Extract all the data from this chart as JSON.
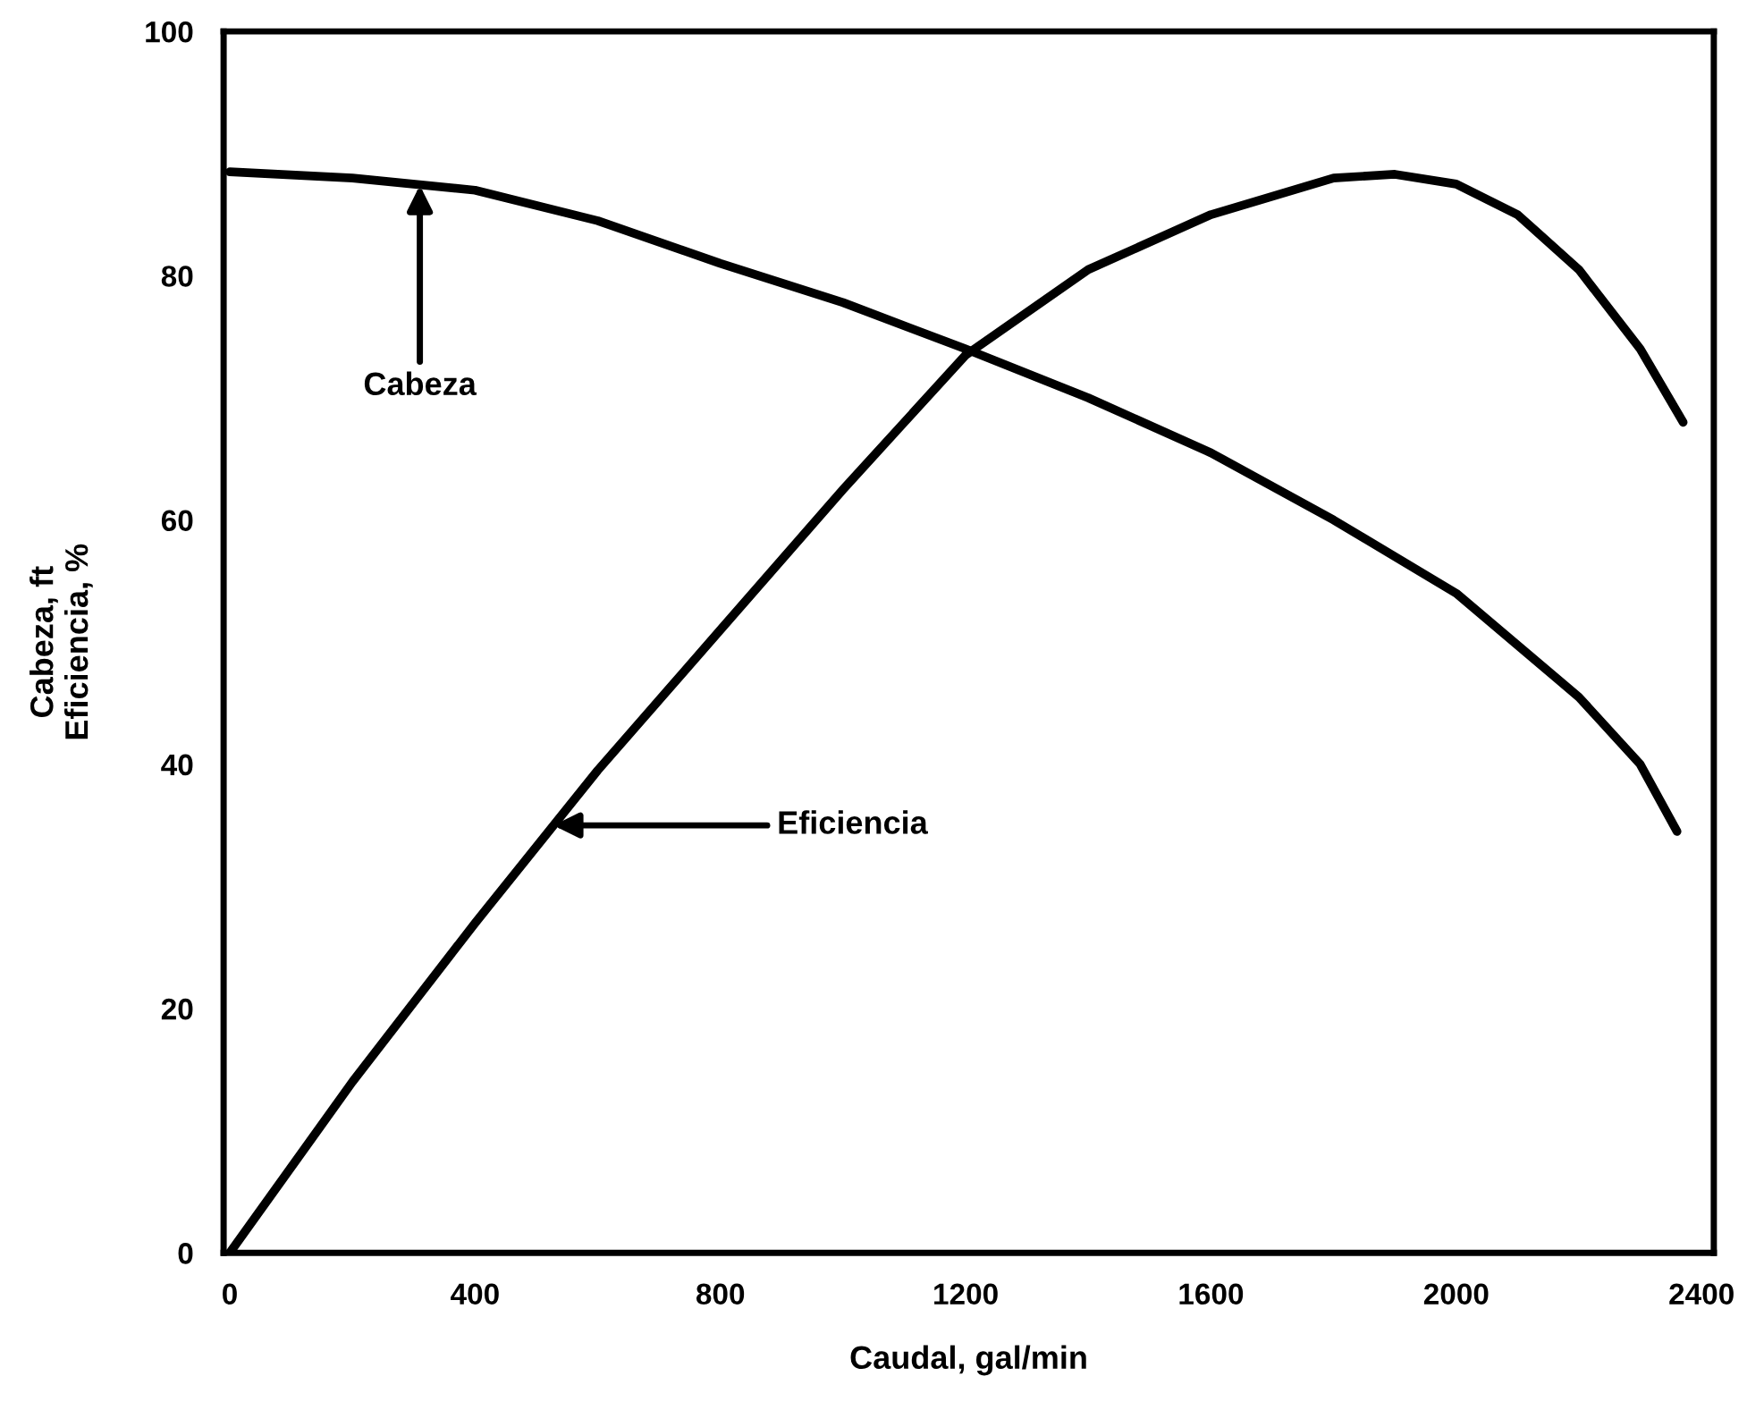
{
  "chart_data": {
    "type": "line",
    "xlabel": "Caudal, gal/min",
    "ylabel": "Cabeza, ft\nEficiencia, %",
    "xlim": [
      -10,
      2420
    ],
    "ylim": [
      0,
      100
    ],
    "xticks": [
      0,
      400,
      800,
      1200,
      1600,
      2000,
      2400
    ],
    "yticks": [
      0,
      20,
      40,
      60,
      80,
      100
    ],
    "grid": false,
    "marker": "none",
    "line_style": "solid",
    "series": [
      {
        "color": "#000000",
        "x": [
          0,
          200,
          400,
          600,
          800,
          1000,
          1200,
          1400,
          1600,
          1800,
          2000,
          2200,
          2300,
          2360
        ],
        "values": [
          88.5,
          88,
          87,
          84.5,
          81,
          77.8,
          74,
          70,
          65.5,
          60,
          54,
          45.5,
          40,
          34.5
        ]
      },
      {
        "color": "#000000",
        "x": [
          0,
          200,
          400,
          600,
          800,
          1000,
          1200,
          1400,
          1600,
          1800,
          1900,
          2000,
          2100,
          2200,
          2300,
          2370
        ],
        "values": [
          0,
          14,
          27,
          39.5,
          51,
          62.5,
          73.5,
          80.5,
          85,
          88,
          88.3,
          87.5,
          85,
          80.5,
          74,
          68
        ]
      }
    ],
    "annotations": [
      {
        "text": "Cabeza",
        "x": 310,
        "y": 87.4
      },
      {
        "text": "Eficiencia",
        "x": 528,
        "y": 35
      }
    ]
  }
}
